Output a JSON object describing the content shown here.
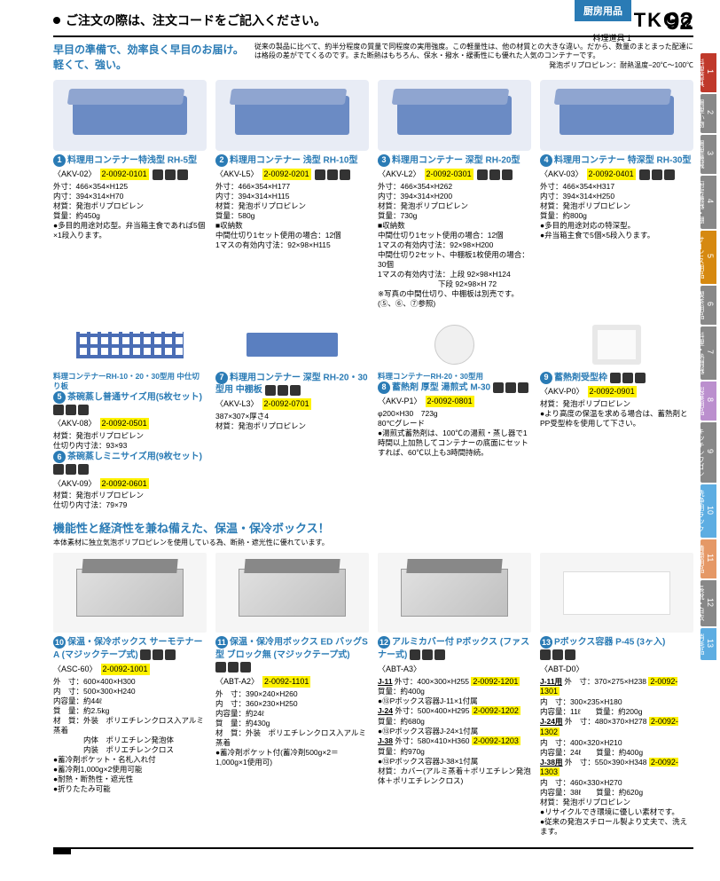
{
  "header": {
    "notice": "ご注文の際は、注文コードをご記入ください。",
    "brand": "TKG",
    "brand_symbol": "Ω",
    "top_badge": "厨房用品",
    "page_number": "92",
    "subcategory": "料理道具 1"
  },
  "intro": {
    "headline_l1": "早目の準備で、効率良く早目のお届け。",
    "headline_l2": "軽くて、強い。",
    "body": "従来の製品に比べて、約半分程度の質量で同程度の実用強度。この軽量性は、他の材質との大きな違い。だから、数量のまとまった配達には格段の差がでてくるのです。また断熱はもちろん、保水・撥水・緩衝性にも優れた人気のコンテナーです。",
    "note": "発泡ポリプロピレン：耐熱温度−20℃〜100℃"
  },
  "row1": [
    {
      "num": "1",
      "title": "料理用コンテナー特浅型 RH-5型",
      "sku": "〈AKV-02〉",
      "code": "2-0092-0101",
      "specs": [
        "外寸：466×354×H125",
        "内寸：394×314×H70",
        "材質：発泡ポリプロピレン",
        "質量：約450g",
        "●多目的用途対応型。弁当箱主食であれば5個×1段入ります。"
      ]
    },
    {
      "num": "2",
      "title": "料理用コンテナー 浅型 RH-10型",
      "sku": "〈AKV-L5〉",
      "code": "2-0092-0201",
      "specs": [
        "外寸：466×354×H177",
        "内寸：394×314×H115",
        "材質：発泡ポリプロピレン",
        "質量：580g",
        "■収納数",
        "中間仕切り1セット使用の場合：12個",
        "1マスの有効内寸法：92×98×H115"
      ]
    },
    {
      "num": "3",
      "title": "料理用コンテナー 深型 RH-20型",
      "sku": "〈AKV-L2〉",
      "code": "2-0092-0301",
      "specs": [
        "外寸：466×354×H262",
        "内寸：394×314×H200",
        "材質：発泡ポリプロピレン",
        "質量：730g",
        "■収納数",
        "中間仕切り1セット使用の場合：12個",
        "1マスの有効内寸法：92×98×H200",
        "中間仕切り2セット、中棚板1枚使用の場合：30個",
        "1マスの有効内寸法：上段 92×98×H124",
        "　　　　　　　　下段 92×98×H 72",
        "※写真の中間仕切り、中棚板は別売です。(⑤、⑥、⑦参照)"
      ]
    },
    {
      "num": "4",
      "title": "料理用コンテナー 特深型 RH-30型",
      "sku": "〈AKV-03〉",
      "code": "2-0092-0401",
      "specs": [
        "外寸：466×354×H317",
        "内寸：394×314×H250",
        "材質：発泡ポリプロピレン",
        "質量：約800g",
        "●多目的用途対応の特深型。",
        "●弁当箱主食で5個×5段入ります。"
      ]
    }
  ],
  "row2": [
    {
      "title_pre": "料理コンテナーRH-10・20・30型用 中仕切り板",
      "items": [
        {
          "num": "5",
          "title": "茶碗蒸し普通サイズ用(5枚セット)",
          "sku": "〈AKV-08〉",
          "code": "2-0092-0501",
          "specs": [
            "材質：発泡ポリプロピレン",
            "仕切り内寸法：93×93"
          ]
        },
        {
          "num": "6",
          "title": "茶碗蒸しミニサイズ用(9枚セット)",
          "sku": "〈AKV-09〉",
          "code": "2-0092-0601",
          "specs": [
            "材質：発泡ポリプロピレン",
            "仕切り内寸法：79×79"
          ]
        }
      ]
    },
    {
      "num": "7",
      "title": "料理用コンテナー 深型 RH-20・30型用 中棚板",
      "sku": "〈AKV-L3〉",
      "code": "2-0092-0701",
      "specs": [
        "387×307×厚さ4",
        "材質：発泡ポリプロピレン"
      ]
    },
    {
      "title_pre": "料理コンテナーRH-20・30型用",
      "items": [
        {
          "num": "8",
          "title": "蓄熱剤 厚型 湯煎式 M-30",
          "sku": "〈AKV-P1〉",
          "code": "2-0092-0801",
          "specs": [
            "φ200×H30　723g",
            "80℃グレード",
            "●湯煎式蓄熱剤は、100℃の湯煎・蒸し器で1時間以上加熱してコンテナーの底面にセットすれば、60℃以上も3時間持続。"
          ]
        }
      ]
    },
    {
      "num": "9",
      "title": "蓄熱剤受型枠",
      "sku": "〈AKV-P0〉",
      "code": "2-0092-0901",
      "specs": [
        "材質：発泡ポリプロピレン",
        "●より高度の保温を求める場合は、蓄熱剤とPP受型枠を使用して下さい。"
      ]
    }
  ],
  "section2": {
    "headline": "機能性と経済性を兼ね備えた、保温・保冷ボックス！",
    "sub": "本体素材に独立気泡ポリプロピレンを使用している為、断熱・遮光性に優れています。"
  },
  "row3": [
    {
      "num": "10",
      "title": "保温・保冷ボックス サーモテナーA (マジックテープ式)",
      "sku": "〈ASC-60〉",
      "code": "2-0092-1001",
      "specs": [
        "外　寸：600×400×H300",
        "内　寸：500×300×H240",
        "内容量：約44ℓ",
        "質　量：約2.5kg",
        "材　質：外装　ポリエチレンクロス入アルミ蒸着",
        "　　　　内体　ポリエチレン発泡体",
        "　　　　内装　ポリエチレンクロス",
        "●蓄冷剤ポケット・名札入れ付",
        "●蓄冷剤1,000g×2使用可能",
        "●耐熱・断熱性・遮光性",
        "●折りたたみ可能"
      ]
    },
    {
      "num": "11",
      "title": "保温・保冷用ボックス ED バッグS型 ブロック無 (マジックテープ式)",
      "sku": "〈ABT-A2〉",
      "code": "2-0092-1101",
      "specs": [
        "外　寸：390×240×H260",
        "内　寸：360×230×H250",
        "内容量：約24ℓ",
        "質　量：約430g",
        "材　質：外装　ポリエチレンクロス入アルミ蒸着",
        "●蓄冷剤ポケット付(蓄冷剤500g×2＝1,000g×1使用可)"
      ]
    },
    {
      "num": "12",
      "title": "アルミカバー付 Pボックス (ファスナー式)",
      "sku": "〈ABT-A3〉",
      "variants": [
        {
          "label": "J-11",
          "spec": "外寸：400×300×H255",
          "code": "2-0092-1201",
          "lines": [
            "質量：約400g",
            "●⑬Pボックス容器J-11×1付属"
          ]
        },
        {
          "label": "J-24",
          "spec": "外寸：500×400×H295",
          "code": "2-0092-1202",
          "lines": [
            "質量：約680g",
            "●⑬Pボックス容器J-24×1付属"
          ]
        },
        {
          "label": "J-38",
          "spec": "外寸：580×410×H360",
          "code": "2-0092-1203",
          "lines": [
            "質量：約970g",
            "●⑬Pボックス容器J-38×1付属"
          ]
        }
      ],
      "footer": "材質：カバー(アルミ蒸着＋ポリエチレン発泡体＋ポリエチレンクロス)"
    },
    {
      "num": "13",
      "title": "Pボックス容器 P-45 (3ヶ入)",
      "sku": "〈ABT-D0〉",
      "variants": [
        {
          "label": "J-11用",
          "spec": "外　寸：370×275×H238",
          "code": "2-0092-1301",
          "lines": [
            "内　寸：300×235×H180",
            "内容量：11ℓ　　質量：約200g"
          ]
        },
        {
          "label": "J-24用",
          "spec": "外　寸：480×370×H278",
          "code": "2-0092-1302",
          "lines": [
            "内　寸：400×320×H210",
            "内容量：24ℓ　　質量：約400g"
          ]
        },
        {
          "label": "J-38用",
          "spec": "外　寸：550×390×H348",
          "code": "2-0092-1303",
          "lines": [
            "内　寸：460×330×H270",
            "内容量：38ℓ　　質量：約620g"
          ]
        }
      ],
      "footer": "材質：発泡ポリプロピレン\n●リサイクルでき環境に優しい素材です。\n●従来の発泡スチロール製より丈夫で、洗えます。"
    }
  ],
  "side_tabs": [
    {
      "n": "1",
      "label": "料理道具",
      "color": "#c0392b"
    },
    {
      "n": "2",
      "label": "調理小物",
      "color": "#888"
    },
    {
      "n": "3",
      "label": "調理機械",
      "color": "#888"
    },
    {
      "n": "4",
      "label": "厨房機器・棚",
      "color": "#888"
    },
    {
      "n": "5",
      "label": "サービス用品",
      "color": "#d68910"
    },
    {
      "n": "6",
      "label": "喫茶用品",
      "color": "#888"
    },
    {
      "n": "7",
      "label": "料理・熱燗器",
      "color": "#888"
    },
    {
      "n": "8",
      "label": "製菓用品",
      "color": "#bb8fce"
    },
    {
      "n": "9",
      "label": "キッチンワゴン",
      "color": "#888"
    },
    {
      "n": "10",
      "label": "洗浄用ラック",
      "color": "#5dade2"
    },
    {
      "n": "11",
      "label": "清掃用品",
      "color": "#e59866"
    },
    {
      "n": "12",
      "label": "長靴・白衣",
      "color": "#888"
    },
    {
      "n": "13",
      "label": "消耗品",
      "color": "#5dade2"
    }
  ]
}
